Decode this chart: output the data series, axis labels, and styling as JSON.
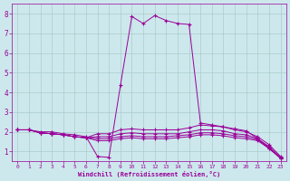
{
  "xlabel": "Windchill (Refroidissement éolien,°C)",
  "background_color": "#cde8ec",
  "line_color": "#990099",
  "grid_color": "#aacccc",
  "xlim": [
    -0.5,
    23.5
  ],
  "ylim": [
    0.5,
    8.5
  ],
  "xticks": [
    0,
    1,
    2,
    3,
    4,
    5,
    6,
    7,
    8,
    9,
    10,
    11,
    12,
    13,
    14,
    15,
    16,
    17,
    18,
    19,
    20,
    21,
    22,
    23
  ],
  "yticks": [
    1,
    2,
    3,
    4,
    5,
    6,
    7,
    8
  ],
  "series": [
    {
      "x": [
        0,
        1,
        2,
        3,
        4,
        5,
        6,
        7,
        8,
        9,
        10,
        11,
        12,
        13,
        14,
        15,
        16,
        17,
        18,
        19,
        20,
        21,
        22,
        23
      ],
      "y": [
        2.1,
        2.1,
        2.0,
        2.0,
        1.9,
        1.85,
        1.75,
        0.75,
        0.7,
        4.35,
        7.85,
        7.5,
        7.9,
        7.65,
        7.5,
        7.45,
        2.45,
        2.35,
        2.25,
        2.15,
        2.05,
        1.65,
        1.15,
        0.7
      ]
    },
    {
      "x": [
        0,
        1,
        2,
        3,
        4,
        5,
        6,
        7,
        8,
        9,
        10,
        11,
        12,
        13,
        14,
        15,
        16,
        17,
        18,
        19,
        20,
        21,
        22,
        23
      ],
      "y": [
        2.1,
        2.1,
        1.95,
        1.9,
        1.85,
        1.75,
        1.7,
        1.9,
        1.9,
        2.1,
        2.15,
        2.1,
        2.1,
        2.1,
        2.1,
        2.2,
        2.35,
        2.3,
        2.25,
        2.1,
        2.0,
        1.75,
        1.35,
        0.75
      ]
    },
    {
      "x": [
        0,
        1,
        2,
        3,
        4,
        5,
        6,
        7,
        8,
        9,
        10,
        11,
        12,
        13,
        14,
        15,
        16,
        17,
        18,
        19,
        20,
        21,
        22,
        23
      ],
      "y": [
        2.1,
        2.1,
        1.95,
        1.9,
        1.85,
        1.75,
        1.7,
        1.75,
        1.75,
        1.9,
        1.95,
        1.9,
        1.9,
        1.9,
        1.9,
        2.0,
        2.1,
        2.1,
        2.05,
        1.9,
        1.85,
        1.65,
        1.25,
        0.7
      ]
    },
    {
      "x": [
        0,
        1,
        2,
        3,
        4,
        5,
        6,
        7,
        8,
        9,
        10,
        11,
        12,
        13,
        14,
        15,
        16,
        17,
        18,
        19,
        20,
        21,
        22,
        23
      ],
      "y": [
        2.1,
        2.1,
        1.95,
        1.9,
        1.85,
        1.75,
        1.7,
        1.65,
        1.65,
        1.75,
        1.8,
        1.75,
        1.75,
        1.75,
        1.8,
        1.85,
        1.95,
        1.95,
        1.9,
        1.8,
        1.75,
        1.6,
        1.2,
        0.65
      ]
    },
    {
      "x": [
        0,
        1,
        2,
        3,
        4,
        5,
        6,
        7,
        8,
        9,
        10,
        11,
        12,
        13,
        14,
        15,
        16,
        17,
        18,
        19,
        20,
        21,
        22,
        23
      ],
      "y": [
        2.1,
        2.1,
        1.95,
        1.9,
        1.85,
        1.75,
        1.7,
        1.55,
        1.55,
        1.65,
        1.7,
        1.65,
        1.65,
        1.65,
        1.7,
        1.75,
        1.85,
        1.85,
        1.8,
        1.7,
        1.65,
        1.55,
        1.15,
        0.65
      ]
    }
  ]
}
